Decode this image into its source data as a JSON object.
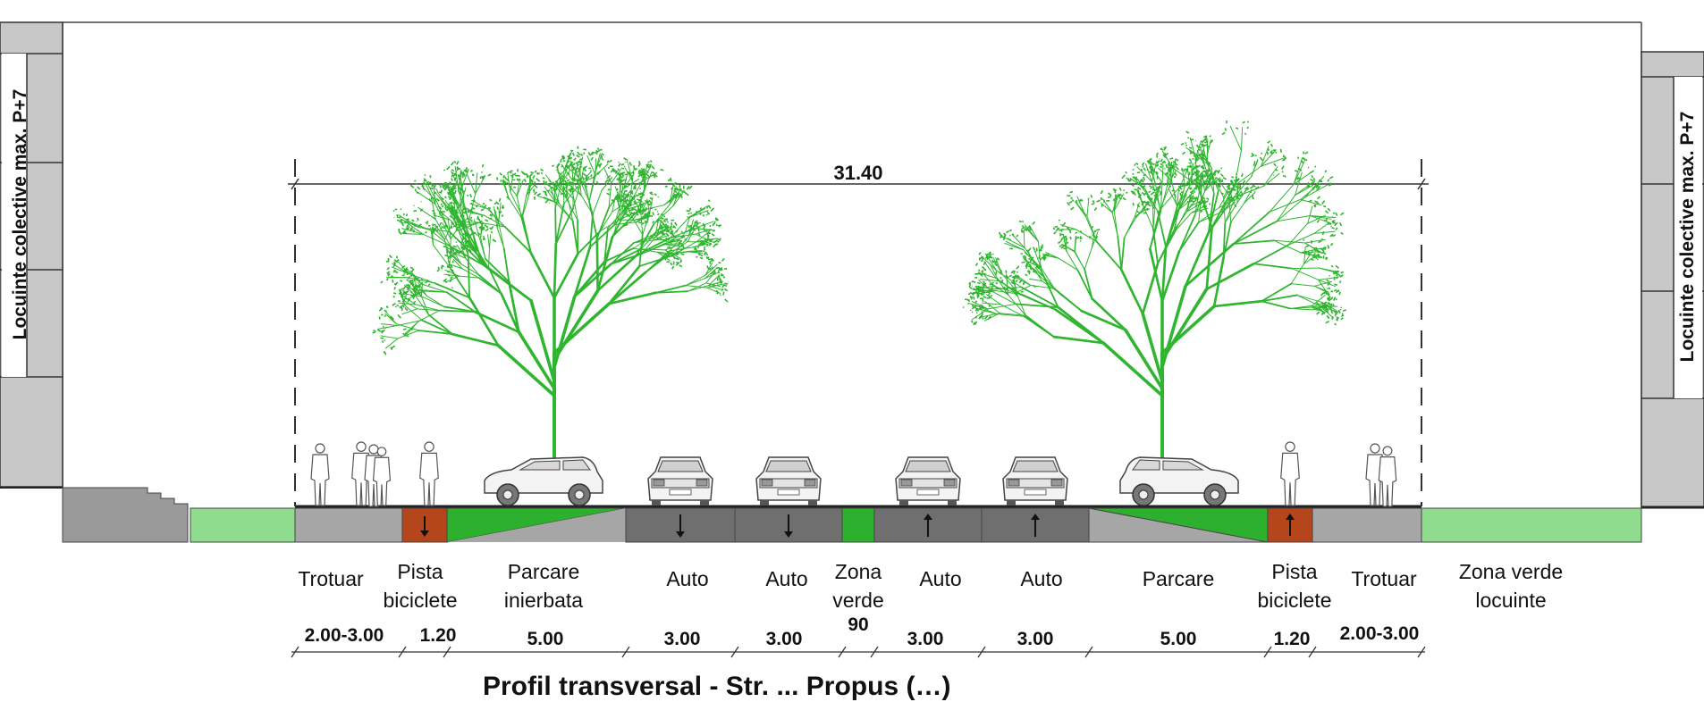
{
  "section": {
    "total_width": "31.40",
    "building_label_left": "Locuinte colective max. P+7",
    "building_label_right": "Locuinte colective max. P+7",
    "caption": "Profil transversal - Str. ... Propus (…)"
  },
  "bands": [
    {
      "label": "Trotuar",
      "dimension": "2.00-3.00"
    },
    {
      "label": "Pista biciclete",
      "dimension": "1.20"
    },
    {
      "label": "Parcare inierbata",
      "dimension": "5.00"
    },
    {
      "label": "Auto",
      "dimension": "3.00"
    },
    {
      "label": "Auto",
      "dimension": "3.00"
    },
    {
      "label": "Zona verde",
      "dimension": "90"
    },
    {
      "label": "Auto",
      "dimension": "3.00"
    },
    {
      "label": "Auto",
      "dimension": "3.00"
    },
    {
      "label": "Parcare",
      "dimension": "5.00"
    },
    {
      "label": "Pista biciclete",
      "dimension": "1.20"
    },
    {
      "label": "Trotuar",
      "dimension": "2.00-3.00"
    },
    {
      "label": "Zona verde locuinte",
      "dimension": ""
    }
  ],
  "colors": {
    "sidewalk": "#a6a6a6",
    "bike_lane": "#b5461c",
    "road": "#6f6f6f",
    "green_dark": "#2db02d",
    "green_light": "#8fdc8f",
    "tree": "#2fb52f",
    "building": "#c8c8c8"
  }
}
